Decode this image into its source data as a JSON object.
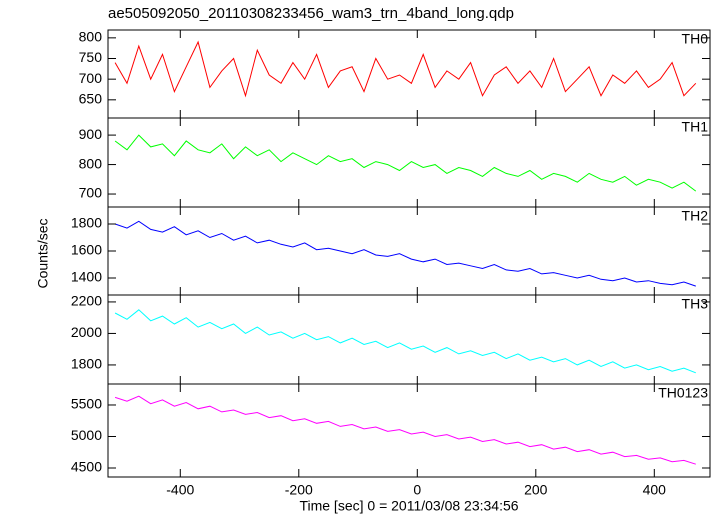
{
  "chart_data": [
    {
      "type": "line",
      "title": "ae505092050_20110308233456_wam3_trn_4band_long.qdp",
      "label": "TH0",
      "color": "#ff0000",
      "x": [
        -510,
        -490,
        -470,
        -450,
        -430,
        -410,
        -390,
        -370,
        -350,
        -330,
        -310,
        -290,
        -270,
        -250,
        -230,
        -210,
        -190,
        -170,
        -150,
        -130,
        -110,
        -90,
        -70,
        -50,
        -30,
        -10,
        10,
        30,
        50,
        70,
        90,
        110,
        130,
        150,
        170,
        190,
        210,
        230,
        250,
        270,
        290,
        310,
        330,
        350,
        370,
        390,
        410,
        430,
        450,
        470
      ],
      "values": [
        740,
        690,
        780,
        700,
        760,
        670,
        730,
        790,
        680,
        720,
        750,
        660,
        770,
        710,
        690,
        740,
        700,
        760,
        680,
        720,
        730,
        670,
        750,
        700,
        710,
        690,
        760,
        680,
        720,
        700,
        740,
        660,
        710,
        730,
        690,
        720,
        680,
        750,
        670,
        700,
        730,
        660,
        710,
        690,
        720,
        680,
        700,
        740,
        660,
        690
      ],
      "xlim": [
        -522,
        494
      ],
      "ylim": [
        606,
        819
      ],
      "yticks": [
        650,
        700,
        750,
        800
      ]
    },
    {
      "type": "line",
      "label": "TH1",
      "color": "#00ff00",
      "x": [
        -510,
        -490,
        -470,
        -450,
        -430,
        -410,
        -390,
        -370,
        -350,
        -330,
        -310,
        -290,
        -270,
        -250,
        -230,
        -210,
        -190,
        -170,
        -150,
        -130,
        -110,
        -90,
        -70,
        -50,
        -30,
        -10,
        10,
        30,
        50,
        70,
        90,
        110,
        130,
        150,
        170,
        190,
        210,
        230,
        250,
        270,
        290,
        310,
        330,
        350,
        370,
        390,
        410,
        430,
        450,
        470
      ],
      "values": [
        880,
        850,
        900,
        860,
        870,
        830,
        880,
        850,
        840,
        870,
        820,
        860,
        830,
        850,
        810,
        840,
        820,
        800,
        830,
        810,
        820,
        790,
        810,
        800,
        780,
        810,
        790,
        800,
        770,
        790,
        780,
        760,
        790,
        770,
        760,
        780,
        750,
        770,
        760,
        740,
        770,
        750,
        740,
        760,
        730,
        750,
        740,
        720,
        740,
        710
      ],
      "xlim": [
        -522,
        494
      ],
      "ylim": [
        656,
        958
      ],
      "yticks": [
        700,
        800,
        900
      ]
    },
    {
      "type": "line",
      "label": "TH2",
      "color": "#0000ff",
      "ylabel": "Counts/sec",
      "x": [
        -510,
        -490,
        -470,
        -450,
        -430,
        -410,
        -390,
        -370,
        -350,
        -330,
        -310,
        -290,
        -270,
        -250,
        -230,
        -210,
        -190,
        -170,
        -150,
        -130,
        -110,
        -90,
        -70,
        -50,
        -30,
        -10,
        10,
        30,
        50,
        70,
        90,
        110,
        130,
        150,
        170,
        190,
        210,
        230,
        250,
        270,
        290,
        310,
        330,
        350,
        370,
        390,
        410,
        430,
        450,
        470
      ],
      "values": [
        1800,
        1770,
        1820,
        1760,
        1740,
        1780,
        1720,
        1750,
        1700,
        1730,
        1680,
        1710,
        1660,
        1680,
        1650,
        1630,
        1660,
        1610,
        1620,
        1600,
        1580,
        1610,
        1570,
        1560,
        1580,
        1540,
        1520,
        1540,
        1500,
        1510,
        1490,
        1470,
        1500,
        1460,
        1450,
        1470,
        1430,
        1440,
        1420,
        1400,
        1420,
        1390,
        1380,
        1400,
        1370,
        1380,
        1360,
        1350,
        1370,
        1340
      ],
      "xlim": [
        -522,
        494
      ],
      "ylim": [
        1274,
        1926
      ],
      "yticks": [
        1400,
        1600,
        1800
      ]
    },
    {
      "type": "line",
      "label": "TH3",
      "color": "#00ffff",
      "x": [
        -510,
        -490,
        -470,
        -450,
        -430,
        -410,
        -390,
        -370,
        -350,
        -330,
        -310,
        -290,
        -270,
        -250,
        -230,
        -210,
        -190,
        -170,
        -150,
        -130,
        -110,
        -90,
        -70,
        -50,
        -30,
        -10,
        10,
        30,
        50,
        70,
        90,
        110,
        130,
        150,
        170,
        190,
        210,
        230,
        250,
        270,
        290,
        310,
        330,
        350,
        370,
        390,
        410,
        430,
        450,
        470
      ],
      "values": [
        2130,
        2090,
        2150,
        2080,
        2110,
        2060,
        2100,
        2040,
        2070,
        2030,
        2060,
        2000,
        2040,
        1990,
        2010,
        1970,
        2000,
        1960,
        1980,
        1940,
        1970,
        1930,
        1950,
        1910,
        1940,
        1900,
        1920,
        1880,
        1910,
        1870,
        1890,
        1860,
        1880,
        1840,
        1870,
        1830,
        1850,
        1820,
        1840,
        1800,
        1830,
        1790,
        1820,
        1780,
        1800,
        1770,
        1790,
        1760,
        1780,
        1750
      ],
      "xlim": [
        -522,
        494
      ],
      "ylim": [
        1679,
        2244
      ],
      "yticks": [
        1800,
        2000,
        2200
      ]
    },
    {
      "type": "line",
      "label": "TH0123",
      "color": "#ff00ff",
      "xlabel": "Time [sec] 0 = 2011/03/08 23:34:56",
      "x": [
        -510,
        -490,
        -470,
        -450,
        -430,
        -410,
        -390,
        -370,
        -350,
        -330,
        -310,
        -290,
        -270,
        -250,
        -230,
        -210,
        -190,
        -170,
        -150,
        -130,
        -110,
        -90,
        -70,
        -50,
        -30,
        -10,
        10,
        30,
        50,
        70,
        90,
        110,
        130,
        150,
        170,
        190,
        210,
        230,
        250,
        270,
        290,
        310,
        330,
        350,
        370,
        390,
        410,
        430,
        450,
        470
      ],
      "values": [
        5620,
        5560,
        5640,
        5520,
        5580,
        5480,
        5540,
        5440,
        5480,
        5390,
        5420,
        5350,
        5380,
        5300,
        5330,
        5250,
        5280,
        5210,
        5240,
        5160,
        5190,
        5120,
        5150,
        5080,
        5110,
        5040,
        5070,
        5000,
        5030,
        4960,
        4990,
        4920,
        4950,
        4880,
        4910,
        4840,
        4870,
        4800,
        4830,
        4760,
        4790,
        4720,
        4750,
        4680,
        4700,
        4640,
        4660,
        4600,
        4620,
        4560
      ],
      "xlim": [
        -522,
        494
      ],
      "ylim": [
        4357,
        5833
      ],
      "yticks": [
        4500,
        5000,
        5500
      ],
      "xticks": [
        -400,
        -200,
        0,
        200,
        400
      ]
    }
  ]
}
